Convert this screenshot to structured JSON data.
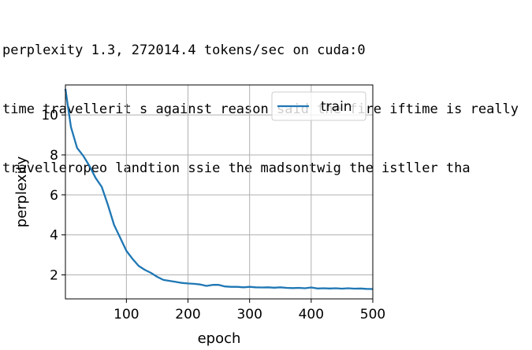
{
  "output_log": [
    "perplexity 1.3, 272014.4 tokens/sec on cuda:0",
    "time travellerit s against reason said the fire iftime is really",
    "travelleropeo landtion ssie the madsontwig the istller tha"
  ],
  "chart_data": {
    "type": "line",
    "xlabel": "epoch",
    "ylabel": "perplexity",
    "xlim": [
      1,
      500
    ],
    "ylim": [
      0.8,
      11.5
    ],
    "xticks": [
      100,
      200,
      300,
      400,
      500
    ],
    "yticks": [
      2,
      4,
      6,
      8,
      10
    ],
    "grid": true,
    "legend_position": "upper right",
    "series": [
      {
        "name": "train",
        "color": "#1f77b4",
        "x": [
          1,
          10,
          20,
          30,
          40,
          50,
          60,
          70,
          80,
          90,
          100,
          110,
          120,
          130,
          140,
          150,
          160,
          170,
          180,
          190,
          200,
          210,
          220,
          230,
          240,
          250,
          260,
          270,
          280,
          290,
          300,
          310,
          320,
          330,
          340,
          350,
          360,
          370,
          380,
          390,
          400,
          410,
          420,
          430,
          440,
          450,
          460,
          470,
          480,
          490,
          500
        ],
        "y": [
          11.3,
          9.4,
          8.35,
          7.95,
          7.45,
          6.85,
          6.4,
          5.5,
          4.5,
          3.85,
          3.2,
          2.8,
          2.45,
          2.25,
          2.1,
          1.9,
          1.75,
          1.7,
          1.65,
          1.6,
          1.57,
          1.55,
          1.52,
          1.45,
          1.5,
          1.5,
          1.42,
          1.4,
          1.4,
          1.38,
          1.4,
          1.38,
          1.37,
          1.38,
          1.36,
          1.38,
          1.35,
          1.34,
          1.35,
          1.33,
          1.37,
          1.32,
          1.33,
          1.32,
          1.33,
          1.31,
          1.33,
          1.31,
          1.32,
          1.3,
          1.29
        ]
      }
    ]
  }
}
